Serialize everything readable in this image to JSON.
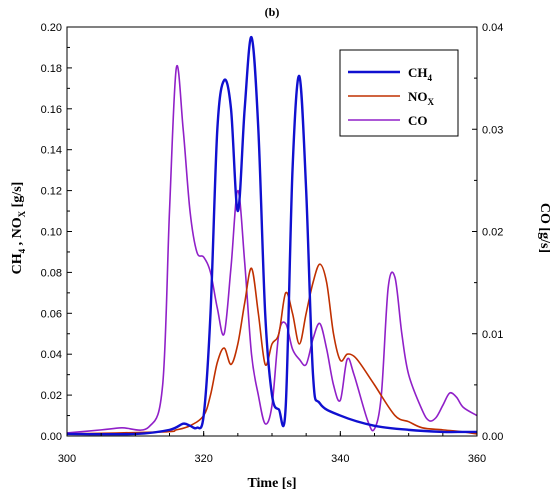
{
  "panel_label": "(b)",
  "chart_data": {
    "type": "line",
    "xlabel": "Time [s]",
    "ylabel_left": {
      "main": "CH",
      "sub1": "4",
      "mid": " , NO",
      "sub2": "X",
      "end": " [g/s]"
    },
    "ylabel_right": "CO [g/s]",
    "xlim": [
      300,
      360
    ],
    "ylim_left": [
      0,
      0.2
    ],
    "ylim_right": [
      0,
      0.04
    ],
    "x_ticks": [
      "300",
      "320",
      "340",
      "360"
    ],
    "y_left_ticks": [
      "0.00",
      "0.02",
      "0.04",
      "0.06",
      "0.08",
      "0.10",
      "0.12",
      "0.14",
      "0.16",
      "0.18",
      "0.20"
    ],
    "y_right_ticks": [
      "0.00",
      "0.01",
      "0.02",
      "0.03",
      "0.04"
    ],
    "legend_position": "top-right",
    "series": [
      {
        "name": "CH4",
        "legend_main": "CH",
        "legend_sub": "4",
        "color": "#1010d0",
        "axis": "left",
        "x": [
          300,
          310,
          315,
          317,
          318,
          319,
          320,
          321,
          322,
          323,
          324,
          325,
          326,
          327,
          328,
          329,
          330,
          331,
          332,
          333,
          334,
          335,
          336,
          337,
          340,
          345,
          350,
          355,
          358,
          360
        ],
        "y": [
          0.001,
          0.001,
          0.003,
          0.006,
          0.005,
          0.004,
          0.01,
          0.06,
          0.15,
          0.174,
          0.16,
          0.11,
          0.16,
          0.195,
          0.15,
          0.06,
          0.02,
          0.013,
          0.014,
          0.13,
          0.176,
          0.12,
          0.03,
          0.016,
          0.01,
          0.005,
          0.003,
          0.002,
          0.002,
          0.002
        ]
      },
      {
        "name": "NOx",
        "legend_main": "NO",
        "legend_sub": "X",
        "color": "#c03000",
        "axis": "left",
        "x": [
          300,
          314,
          316,
          318,
          320,
          321,
          322,
          323,
          324,
          325,
          326,
          327,
          328,
          329,
          330,
          331,
          332,
          333,
          334,
          335,
          336,
          337,
          338,
          339,
          340,
          341,
          342,
          343,
          345,
          348,
          350,
          352,
          355,
          358,
          360
        ],
        "y": [
          0.001,
          0.002,
          0.003,
          0.005,
          0.01,
          0.02,
          0.036,
          0.043,
          0.035,
          0.045,
          0.065,
          0.082,
          0.06,
          0.035,
          0.045,
          0.05,
          0.07,
          0.06,
          0.045,
          0.06,
          0.075,
          0.084,
          0.075,
          0.05,
          0.037,
          0.04,
          0.039,
          0.035,
          0.025,
          0.01,
          0.007,
          0.004,
          0.003,
          0.002,
          0.001
        ]
      },
      {
        "name": "CO",
        "legend_main": "CO",
        "legend_sub": "",
        "color": "#9020c8",
        "axis": "right",
        "x": [
          300,
          305,
          308,
          312,
          314,
          315,
          316,
          317,
          318,
          319,
          320,
          321,
          322,
          323,
          324,
          325,
          326,
          327,
          328,
          329,
          330,
          331,
          332,
          333,
          334,
          335,
          336,
          337,
          338,
          339,
          340,
          341,
          342,
          344,
          345,
          346,
          347,
          348,
          349,
          350,
          352,
          353,
          354,
          355,
          356,
          357,
          358,
          360
        ],
        "y": [
          0.0003,
          0.0006,
          0.0008,
          0.0009,
          0.005,
          0.022,
          0.036,
          0.03,
          0.022,
          0.018,
          0.0175,
          0.016,
          0.0125,
          0.01,
          0.0165,
          0.024,
          0.017,
          0.008,
          0.004,
          0.0012,
          0.003,
          0.01,
          0.011,
          0.0085,
          0.0075,
          0.007,
          0.0095,
          0.011,
          0.0085,
          0.005,
          0.0035,
          0.0075,
          0.006,
          0.0015,
          0.0007,
          0.004,
          0.0145,
          0.0155,
          0.01,
          0.006,
          0.0025,
          0.0015,
          0.0018,
          0.003,
          0.0042,
          0.0038,
          0.0028,
          0.002
        ]
      }
    ]
  }
}
